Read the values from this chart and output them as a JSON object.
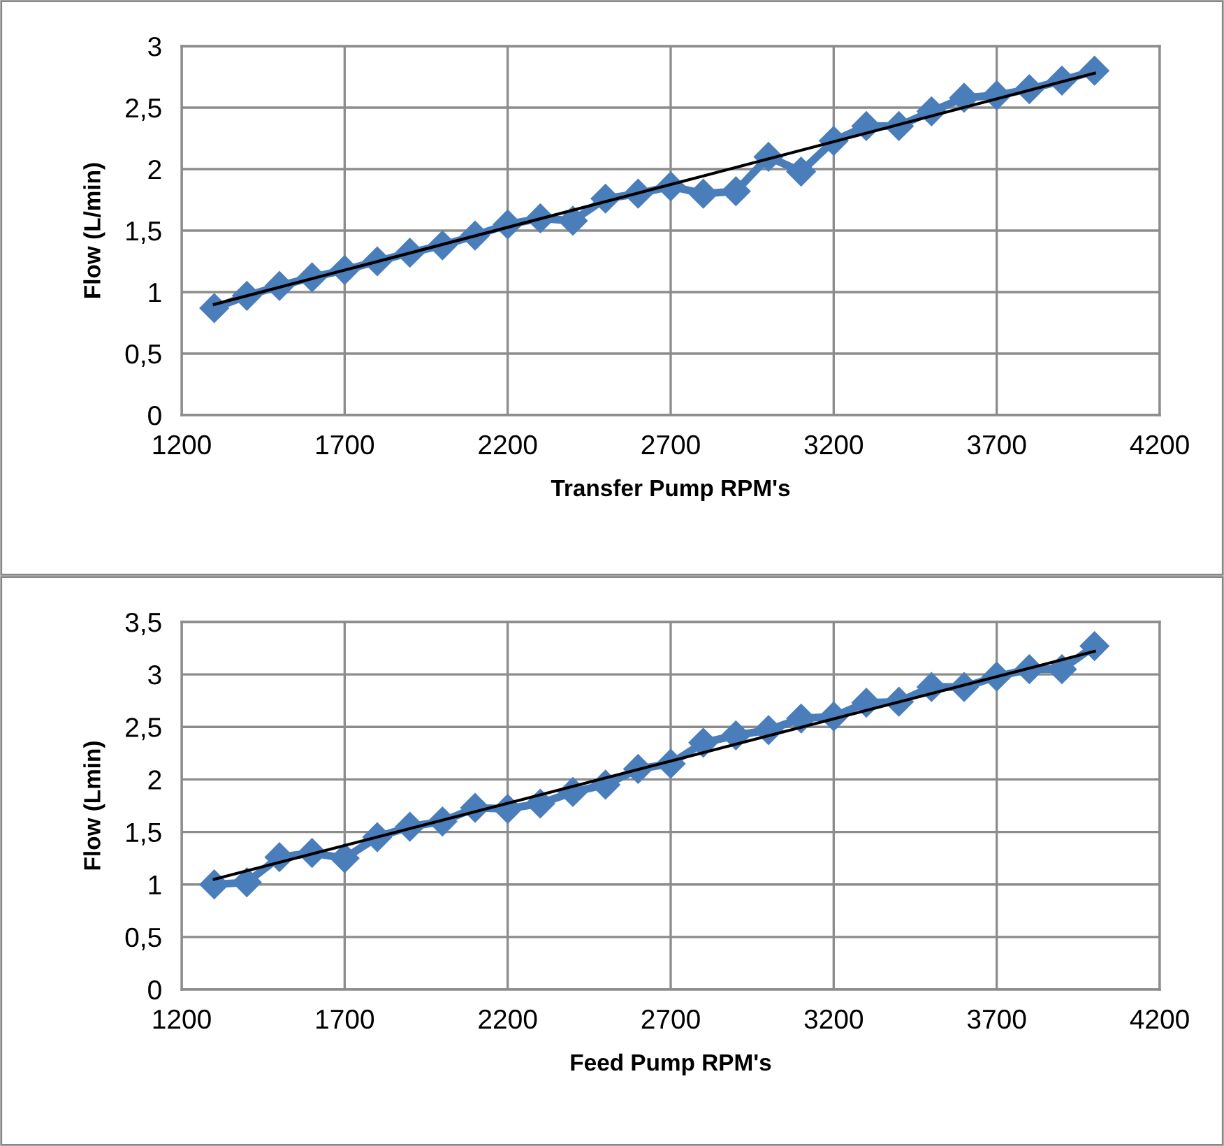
{
  "chart_data": [
    {
      "type": "line",
      "xlabel": "Transfer Pump RPM's",
      "ylabel": "Flow (L/min)",
      "xlim": [
        1200,
        4200
      ],
      "xticks": [
        1200,
        1700,
        2200,
        2700,
        3200,
        3700,
        4200
      ],
      "ylim": [
        0,
        3
      ],
      "yticks": [
        0,
        {
          "value": 0.5,
          "label": "0,5"
        },
        1,
        {
          "value": 1.5,
          "label": "1,5"
        },
        2,
        {
          "value": 2.5,
          "label": "2,5"
        },
        3
      ],
      "grid": true,
      "legend": false,
      "series": [
        {
          "color": "#4a7ebb",
          "marker": "diamond",
          "x": [
            1300,
            1400,
            1500,
            1600,
            1700,
            1800,
            1900,
            2000,
            2100,
            2200,
            2300,
            2400,
            2500,
            2600,
            2700,
            2800,
            2900,
            3000,
            3100,
            3200,
            3300,
            3400,
            3500,
            3600,
            3700,
            3800,
            3900,
            4000
          ],
          "values": [
            0.87,
            0.97,
            1.05,
            1.12,
            1.18,
            1.25,
            1.32,
            1.38,
            1.46,
            1.55,
            1.6,
            1.58,
            1.76,
            1.8,
            1.86,
            1.8,
            1.82,
            2.1,
            1.98,
            2.23,
            2.35,
            2.35,
            2.47,
            2.58,
            2.6,
            2.65,
            2.72,
            2.8
          ]
        },
        {
          "color": "#000000",
          "marker": "none",
          "x": [
            1300,
            4000
          ],
          "values": [
            0.9,
            2.78
          ]
        }
      ]
    },
    {
      "type": "line",
      "xlabel": "Feed Pump RPM's",
      "ylabel": "Flow (Lmin)",
      "xlim": [
        1200,
        4200
      ],
      "xticks": [
        1200,
        1700,
        2200,
        2700,
        3200,
        3700,
        4200
      ],
      "ylim": [
        0,
        3.5
      ],
      "yticks": [
        0,
        {
          "value": 0.5,
          "label": "0,5"
        },
        1,
        {
          "value": 1.5,
          "label": "1,5"
        },
        2,
        {
          "value": 2.5,
          "label": "2,5"
        },
        3,
        {
          "value": 3.5,
          "label": "3,5"
        }
      ],
      "grid": true,
      "legend": false,
      "series": [
        {
          "color": "#4a7ebb",
          "marker": "diamond",
          "x": [
            1300,
            1400,
            1500,
            1600,
            1700,
            1800,
            1900,
            2000,
            2100,
            2200,
            2300,
            2400,
            2500,
            2600,
            2700,
            2800,
            2900,
            3000,
            3100,
            3200,
            3300,
            3400,
            3500,
            3600,
            3700,
            3800,
            3900,
            4000
          ],
          "values": [
            1.0,
            1.02,
            1.26,
            1.3,
            1.25,
            1.45,
            1.55,
            1.6,
            1.73,
            1.72,
            1.77,
            1.88,
            1.95,
            2.1,
            2.15,
            2.35,
            2.42,
            2.47,
            2.58,
            2.6,
            2.73,
            2.74,
            2.88,
            2.88,
            2.98,
            3.05,
            3.05,
            3.27
          ]
        },
        {
          "color": "#000000",
          "marker": "none",
          "x": [
            1300,
            4000
          ],
          "values": [
            1.05,
            3.22
          ]
        }
      ]
    }
  ]
}
